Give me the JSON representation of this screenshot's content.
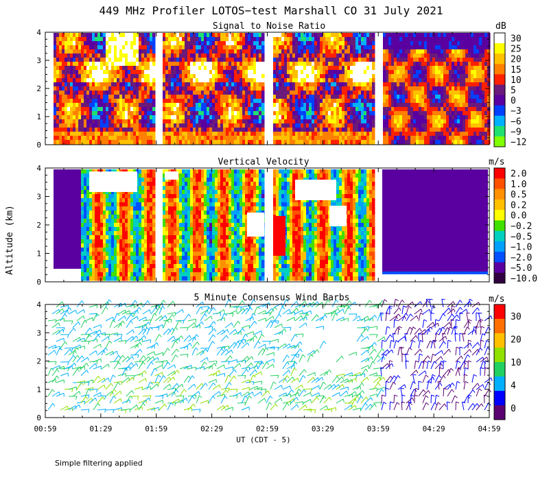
{
  "figure_title": "449 MHz Profiler LOTOS−test Marshall CO 31 July 2021",
  "ylabel": "Altitude (km)",
  "xlabel": "UT  (CDT - 5)",
  "footnote": "Simple filtering applied",
  "x_ticks": [
    "00:59",
    "01:29",
    "01:59",
    "02:29",
    "02:59",
    "03:29",
    "03:59",
    "04:29",
    "04:59"
  ],
  "y_ticks": [
    "0",
    "1",
    "2",
    "3",
    "4"
  ],
  "chart_data": [
    {
      "type": "heatmap",
      "title": "Signal to Noise Ratio",
      "unit": "dB",
      "ylim": [
        0,
        4
      ],
      "data_gaps": [
        [
          "02:10",
          "02:16"
        ],
        [
          "02:57",
          "03:02"
        ],
        [
          "03:50",
          "03:55"
        ]
      ],
      "colorbar": {
        "ticks": [
          "30",
          "25",
          "20",
          "15",
          "10",
          "5",
          "0",
          "−3",
          "−6",
          "−9",
          "−12"
        ],
        "colors": [
          "#ffffff",
          "#ffff00",
          "#ffc000",
          "#ff8000",
          "#ff2000",
          "#6a1a7a",
          "#5a00a0",
          "#0040ff",
          "#00b0ff",
          "#20e070",
          "#80ff00"
        ]
      }
    },
    {
      "type": "heatmap",
      "title": "Vertical Velocity",
      "unit": "m/s",
      "ylim": [
        0,
        4
      ],
      "colorbar": {
        "ticks": [
          "2.0",
          "1.0",
          "0.5",
          "0.2",
          "0.0",
          "−0.2",
          "−0.5",
          "−1.0",
          "−2.0",
          "−5.0",
          "−10.0"
        ],
        "colors": [
          "#ff0000",
          "#ff5000",
          "#ff9000",
          "#ffc000",
          "#ffff00",
          "#40e000",
          "#00d0c0",
          "#00a0ff",
          "#0050ff",
          "#5a00a0",
          "#300040"
        ]
      }
    },
    {
      "type": "scatter",
      "title": "5 Minute Consensus Wind Barbs",
      "unit": "m/s",
      "ylim": [
        0,
        4
      ],
      "colorbar": {
        "ticks": [
          "30",
          "20",
          "10",
          "4",
          "0"
        ],
        "colors": [
          "#ff0000",
          "#ff7000",
          "#ffc000",
          "#90e000",
          "#20d060",
          "#00b0ff",
          "#0000ff",
          "#5a0070"
        ]
      }
    }
  ]
}
